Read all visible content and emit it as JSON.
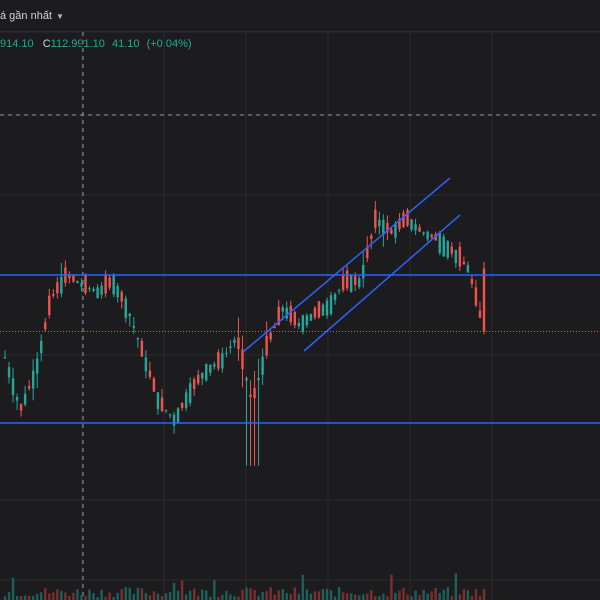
{
  "toolbar": {
    "price_type_label": "á gần nhất",
    "dropdown_icon": "caret-down-icon"
  },
  "legend": {
    "partial_value": "914.10",
    "close_key": "C",
    "close_value": "112.991.10",
    "change_abs": "41.10",
    "change_pct": "(+0.04%)"
  },
  "colors": {
    "background": "#1c1c1e",
    "grid": "#2a2a2c",
    "up_candle": "#26a69a",
    "down_candle": "#ef5350",
    "trend_line": "#2962ff",
    "crosshair": "#9598a1",
    "last_price_line": "#ef5350",
    "volume_up": "#1e5f58",
    "volume_down": "#7a2e30"
  },
  "chart_data": {
    "type": "candlestick",
    "last_close": 112991.1,
    "candles_sampled": [
      {
        "o": 112900,
        "c": 112600,
        "h": 113000,
        "l": 112500
      },
      {
        "o": 112600,
        "c": 111800,
        "h": 112700,
        "l": 111650
      },
      {
        "o": 111800,
        "c": 112400,
        "h": 112500,
        "l": 111700
      },
      {
        "o": 112400,
        "c": 113500,
        "h": 113600,
        "l": 112300
      },
      {
        "o": 113500,
        "c": 113850,
        "h": 114000,
        "l": 113400
      },
      {
        "o": 113850,
        "c": 113700,
        "h": 113950,
        "l": 113550
      },
      {
        "o": 113700,
        "c": 113600,
        "h": 113850,
        "l": 113450
      },
      {
        "o": 113600,
        "c": 113750,
        "h": 113900,
        "l": 113500
      },
      {
        "o": 113750,
        "c": 113300,
        "h": 113850,
        "l": 113200
      },
      {
        "o": 113300,
        "c": 112600,
        "h": 113400,
        "l": 112500
      },
      {
        "o": 112600,
        "c": 111900,
        "h": 112700,
        "l": 111800
      },
      {
        "o": 111900,
        "c": 111650,
        "h": 112000,
        "l": 111550
      },
      {
        "o": 111650,
        "c": 112100,
        "h": 112200,
        "l": 111550
      },
      {
        "o": 112100,
        "c": 112400,
        "h": 112500,
        "l": 112000
      },
      {
        "o": 112400,
        "c": 112550,
        "h": 112650,
        "l": 112300
      },
      {
        "o": 112550,
        "c": 112900,
        "h": 113000,
        "l": 112450
      },
      {
        "o": 112900,
        "c": 111900,
        "h": 113000,
        "l": 111100
      },
      {
        "o": 111900,
        "c": 112800,
        "h": 112950,
        "l": 111800
      },
      {
        "o": 112800,
        "c": 113350,
        "h": 113450,
        "l": 112700
      },
      {
        "o": 113350,
        "c": 113100,
        "h": 113450,
        "l": 113000
      },
      {
        "o": 113100,
        "c": 113250,
        "h": 113350,
        "l": 113000
      },
      {
        "o": 113250,
        "c": 113400,
        "h": 113500,
        "l": 113150
      },
      {
        "o": 113400,
        "c": 113750,
        "h": 113850,
        "l": 113300
      },
      {
        "o": 113750,
        "c": 113750,
        "h": 113900,
        "l": 113650
      },
      {
        "o": 113750,
        "c": 114700,
        "h": 114900,
        "l": 113650
      },
      {
        "o": 114700,
        "c": 114500,
        "h": 114950,
        "l": 114400
      },
      {
        "o": 114500,
        "c": 114700,
        "h": 114850,
        "l": 114350
      },
      {
        "o": 114700,
        "c": 114500,
        "h": 114800,
        "l": 114400
      },
      {
        "o": 114500,
        "c": 114400,
        "h": 114600,
        "l": 114300
      },
      {
        "o": 114400,
        "c": 114200,
        "h": 114500,
        "l": 114100
      },
      {
        "o": 114200,
        "c": 113950,
        "h": 114300,
        "l": 113800
      },
      {
        "o": 113950,
        "c": 112991.1,
        "h": 114050,
        "l": 112950
      }
    ],
    "horizontal_levels": [
      113850,
      111600
    ],
    "channel": "ascending",
    "crosshair_x_candle": 4
  }
}
